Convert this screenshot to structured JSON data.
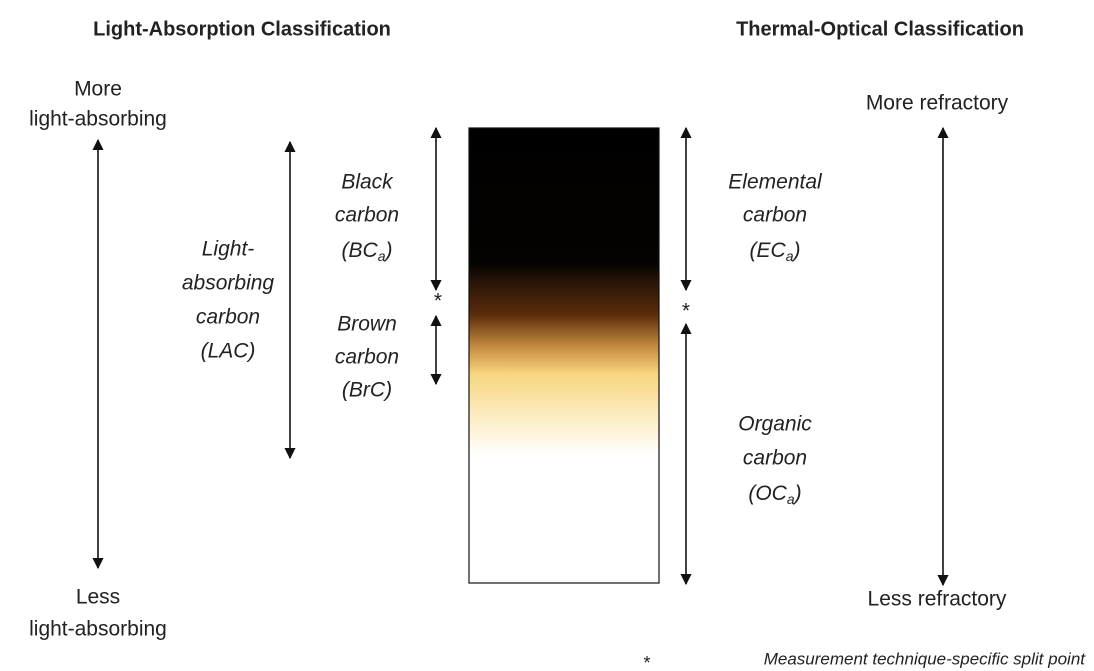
{
  "left_heading": "Light-Absorption Classification",
  "right_heading": "Thermal-Optical Classification",
  "left_scale": {
    "top": [
      "More",
      "light-absorbing"
    ],
    "bottom": [
      "Less",
      "light-absorbing"
    ]
  },
  "right_scale": {
    "top": "More refractory",
    "bottom": "Less refractory"
  },
  "lac": [
    "Light-",
    "absorbing",
    "carbon",
    "(LAC)"
  ],
  "black_carbon": {
    "lines": [
      "Black",
      "carbon"
    ],
    "abbr": "(BC",
    "sub": "a",
    "close": ")"
  },
  "brown_carbon": [
    "Brown",
    "carbon",
    "(BrC)"
  ],
  "elemental_carbon": {
    "lines": [
      "Elemental",
      "carbon"
    ],
    "abbr": "(EC",
    "sub": "a",
    "close": ")"
  },
  "organic_carbon": {
    "lines": [
      "Organic",
      "carbon"
    ],
    "abbr": "(OC",
    "sub": "a",
    "close": ")"
  },
  "split_marker": "*",
  "footnote": {
    "marker": "*",
    "text": "Measurement technique-specific split point"
  }
}
